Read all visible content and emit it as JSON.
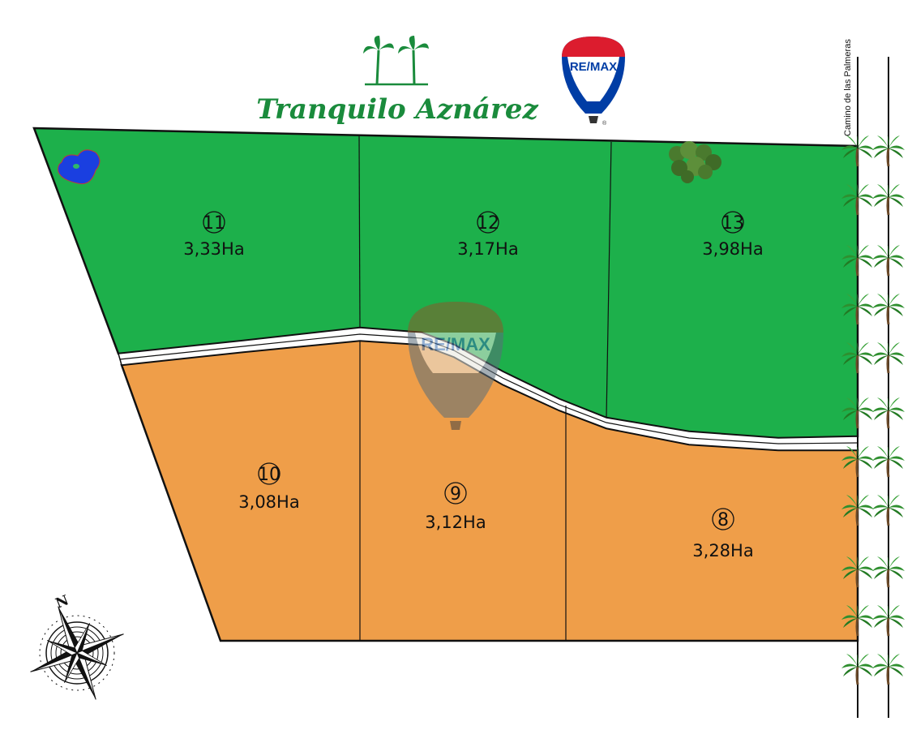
{
  "brand": {
    "name": "Tranquilo Aznárez",
    "agency": "RE/MAX",
    "agency_mark": "®",
    "green": "#1a8b3c",
    "remax_red": "#dc1c2e",
    "remax_blue": "#003da5"
  },
  "road": {
    "label": "Camino de las Palmeras"
  },
  "legend_colors": {
    "north_block": "#1db04b",
    "south_block": "#ef9e49",
    "pond": "#1a3fe0"
  },
  "lots": [
    {
      "number": "11",
      "area": "3,33Ha",
      "block": "north"
    },
    {
      "number": "12",
      "area": "3,17Ha",
      "block": "north"
    },
    {
      "number": "13",
      "area": "3,98Ha",
      "block": "north"
    },
    {
      "number": "10",
      "area": "3,08Ha",
      "block": "south"
    },
    {
      "number": "9",
      "area": "3,12Ha",
      "block": "south"
    },
    {
      "number": "8",
      "area": "3,28Ha",
      "block": "south"
    }
  ],
  "compass": {
    "north_label": "N"
  },
  "icons": [
    "palm-tree-icon",
    "hot-air-balloon-icon",
    "compass-rose-icon",
    "pond-icon",
    "tree-cluster-icon"
  ]
}
